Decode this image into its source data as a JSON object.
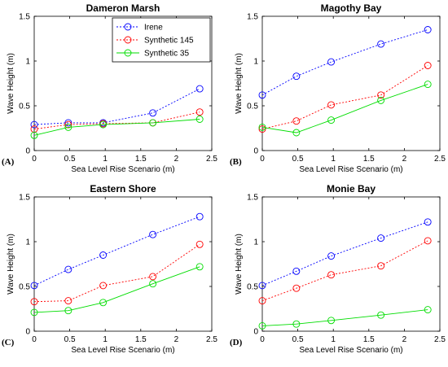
{
  "colors": {
    "Irene": "#0000ff",
    "Synthetic 145": "#ff0000",
    "Synthetic 35": "#00dd00"
  },
  "chart_data": [
    {
      "panel": "(A)",
      "type": "line",
      "title": "Dameron Marsh",
      "xlabel": "Sea Level Rise Scenario (m)",
      "ylabel": "Wave Height (m)",
      "xlim": [
        0,
        2.5
      ],
      "ylim": [
        0,
        1.5
      ],
      "xticks": [
        "0",
        "0.5",
        "1",
        "1.5",
        "2",
        "2.5"
      ],
      "yticks": [
        "0",
        "0.5",
        "1",
        "1.5"
      ],
      "x": [
        0,
        0.48,
        0.97,
        1.67,
        2.33
      ],
      "legend": {
        "position": "top-right"
      },
      "series": [
        {
          "name": "Irene",
          "values": [
            0.29,
            0.31,
            0.31,
            0.42,
            0.69
          ]
        },
        {
          "name": "Synthetic 145",
          "values": [
            0.24,
            0.29,
            0.3,
            0.31,
            0.43
          ]
        },
        {
          "name": "Synthetic 35",
          "values": [
            0.17,
            0.26,
            0.29,
            0.31,
            0.35
          ]
        }
      ]
    },
    {
      "panel": "(B)",
      "type": "line",
      "title": "Magothy Bay",
      "xlabel": "Sea Level Rise Scenario (m)",
      "ylabel": "Wave Height (m)",
      "xlim": [
        0,
        2.5
      ],
      "ylim": [
        0,
        1.5
      ],
      "xticks": [
        "0",
        "0.5",
        "1",
        "1.5",
        "2",
        "2.5"
      ],
      "yticks": [
        "0",
        "0.5",
        "1",
        "1.5"
      ],
      "x": [
        0,
        0.48,
        0.97,
        1.67,
        2.33
      ],
      "series": [
        {
          "name": "Irene",
          "values": [
            0.62,
            0.83,
            0.99,
            1.19,
            1.35
          ]
        },
        {
          "name": "Synthetic 145",
          "values": [
            0.24,
            0.33,
            0.51,
            0.62,
            0.95
          ]
        },
        {
          "name": "Synthetic 35",
          "values": [
            0.26,
            0.2,
            0.34,
            0.56,
            0.74
          ]
        }
      ]
    },
    {
      "panel": "(C)",
      "type": "line",
      "title": "Eastern Shore",
      "xlabel": "Sea Level Rise Scenario (m)",
      "ylabel": "Wave Height (m)",
      "xlim": [
        0,
        2.5
      ],
      "ylim": [
        0,
        1.5
      ],
      "xticks": [
        "0",
        "0.5",
        "1",
        "1.5",
        "2",
        "2.5"
      ],
      "yticks": [
        "0",
        "0.5",
        "1",
        "1.5"
      ],
      "x": [
        0,
        0.48,
        0.97,
        1.67,
        2.33
      ],
      "series": [
        {
          "name": "Irene",
          "values": [
            0.51,
            0.69,
            0.85,
            1.08,
            1.28
          ]
        },
        {
          "name": "Synthetic 145",
          "values": [
            0.33,
            0.34,
            0.51,
            0.61,
            0.97
          ]
        },
        {
          "name": "Synthetic 35",
          "values": [
            0.21,
            0.23,
            0.32,
            0.53,
            0.72
          ]
        }
      ]
    },
    {
      "panel": "(D)",
      "type": "line",
      "title": "Monie Bay",
      "xlabel": "Sea Level Rise Scenario (m)",
      "ylabel": "Wave Height (m)",
      "xlim": [
        0,
        2.5
      ],
      "ylim": [
        0,
        1.5
      ],
      "xticks": [
        "0",
        "0.5",
        "1",
        "1.5",
        "2",
        "2.5"
      ],
      "yticks": [
        "0",
        "0.5",
        "1",
        "1.5"
      ],
      "x": [
        0,
        0.48,
        0.97,
        1.67,
        2.33
      ],
      "series": [
        {
          "name": "Irene",
          "values": [
            0.51,
            0.67,
            0.84,
            1.04,
            1.22
          ]
        },
        {
          "name": "Synthetic 145",
          "values": [
            0.34,
            0.48,
            0.63,
            0.73,
            1.01
          ]
        },
        {
          "name": "Synthetic 35",
          "values": [
            0.06,
            0.08,
            0.12,
            0.18,
            0.24
          ]
        }
      ]
    }
  ]
}
